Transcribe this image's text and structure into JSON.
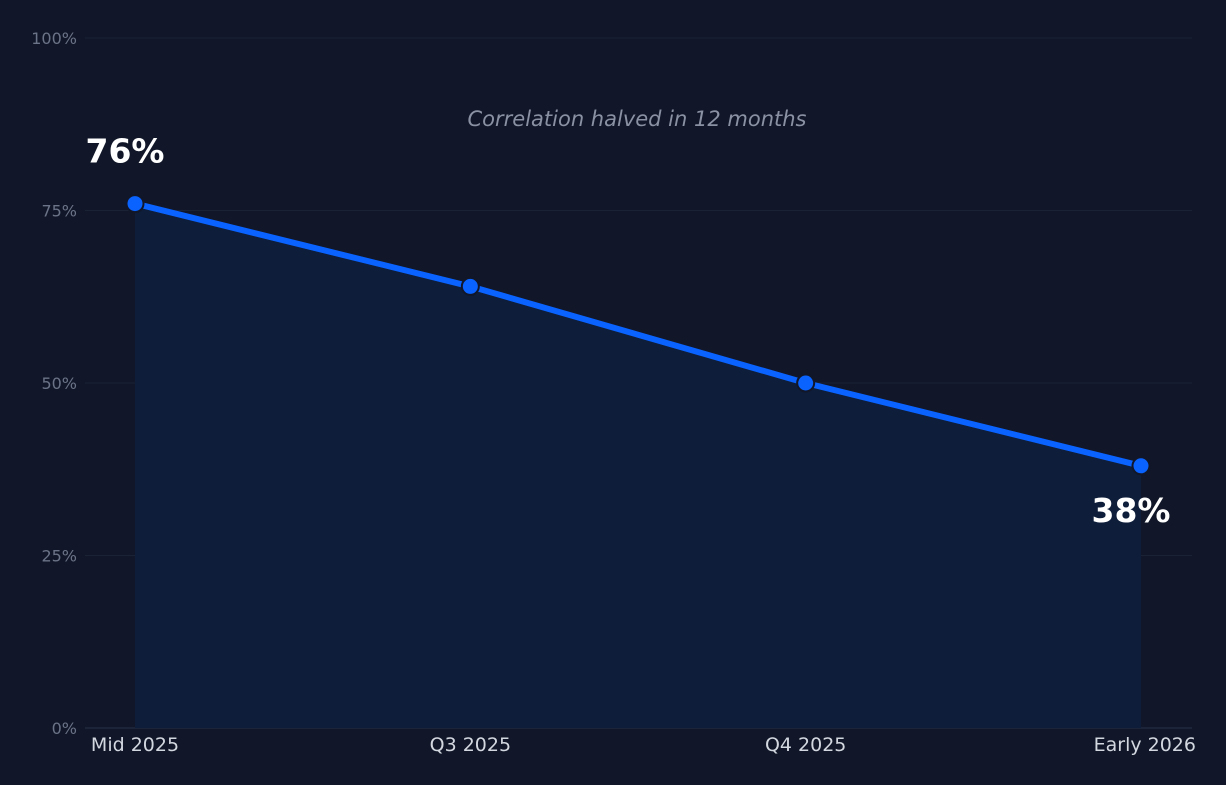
{
  "chart_data": {
    "type": "area",
    "categories": [
      "Mid 2025",
      "Q3 2025",
      "Q4 2025",
      "Early 2026"
    ],
    "series": [
      {
        "values": [
          76,
          64,
          50,
          38
        ]
      }
    ],
    "ylim": [
      0,
      100
    ],
    "yticks": [
      0,
      25,
      50,
      75,
      100
    ],
    "ytick_labels": [
      "0%",
      "25%",
      "50%",
      "75%",
      "100%"
    ],
    "annotation": "Correlation halved in 12 months",
    "data_labels": [
      {
        "index": 0,
        "text": "76%"
      },
      {
        "index": 3,
        "text": "38%"
      }
    ],
    "grid": true,
    "colors": {
      "background": "#111728",
      "line": "#0a63ff",
      "area": "#0d1d3a",
      "grid": "#1a2236"
    }
  }
}
